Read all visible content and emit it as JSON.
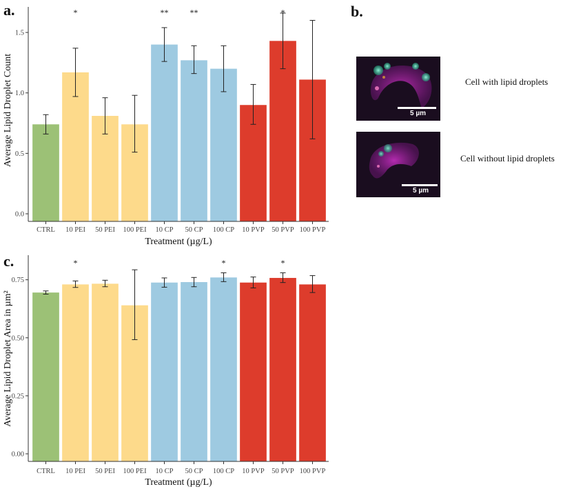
{
  "panel_labels": {
    "a": "a.",
    "b": "b.",
    "c": "c."
  },
  "colors": {
    "green": "#9cc176",
    "yellow": "#fdda8b",
    "blue": "#9ecae1",
    "red": "#dd3c2c"
  },
  "chart_data": [
    {
      "id": "a",
      "type": "bar",
      "title": "",
      "xlabel": "Treatment (µg/L)",
      "ylabel": "Average Lipid Droplet Count",
      "ylim": [
        0,
        1.7
      ],
      "yticks": [
        "0.0",
        "0.5",
        "1.0",
        "1.5"
      ],
      "ytick_values": [
        0,
        0.5,
        1.0,
        1.5
      ],
      "categories": [
        "CTRL",
        "10 PEI",
        "50 PEI",
        "100 PEI",
        "10 CP",
        "50 CP",
        "100 CP",
        "10 PVP",
        "50 PVP",
        "100 PVP"
      ],
      "values": [
        0.74,
        1.17,
        0.81,
        0.74,
        1.4,
        1.27,
        1.2,
        0.9,
        1.43,
        1.11
      ],
      "err_low": [
        0.66,
        0.97,
        0.66,
        0.51,
        1.26,
        1.16,
        1.01,
        0.74,
        1.2,
        0.62
      ],
      "err_high": [
        0.82,
        1.37,
        0.96,
        0.98,
        1.54,
        1.39,
        1.39,
        1.07,
        1.66,
        1.6
      ],
      "significance": [
        "",
        "*",
        "",
        "",
        "**",
        "**",
        "",
        "",
        "*",
        ""
      ],
      "bar_colors": [
        "green",
        "yellow",
        "yellow",
        "yellow",
        "blue",
        "blue",
        "blue",
        "red",
        "red",
        "red"
      ]
    },
    {
      "id": "c",
      "type": "bar",
      "title": "",
      "xlabel": "Treatment (µg/L)",
      "ylabel": "Average Lipid Droplet Area in µm²",
      "ylim": [
        0,
        0.85
      ],
      "yticks": [
        "0.00",
        "0.25",
        "0.50",
        "0.75"
      ],
      "ytick_values": [
        0,
        0.25,
        0.5,
        0.75
      ],
      "categories": [
        "CTRL",
        "10 PEI",
        "50 PEI",
        "100 PEI",
        "10 CP",
        "50 CP",
        "100 CP",
        "10 PVP",
        "50 PVP",
        "100 PVP"
      ],
      "values": [
        0.695,
        0.73,
        0.733,
        0.64,
        0.738,
        0.74,
        0.76,
        0.738,
        0.758,
        0.73
      ],
      "err_low": [
        0.688,
        0.717,
        0.72,
        0.492,
        0.718,
        0.72,
        0.742,
        0.715,
        0.738,
        0.695
      ],
      "err_high": [
        0.702,
        0.745,
        0.748,
        0.793,
        0.758,
        0.76,
        0.78,
        0.762,
        0.78,
        0.768
      ],
      "significance": [
        "",
        "*",
        "",
        "",
        "",
        "",
        "*",
        "",
        "*",
        ""
      ],
      "bar_colors": [
        "green",
        "yellow",
        "yellow",
        "yellow",
        "blue",
        "blue",
        "blue",
        "red",
        "red",
        "red"
      ]
    }
  ],
  "panel_b": {
    "images": [
      {
        "caption": "Cell with lipid droplets",
        "scale_label": "5 µm"
      },
      {
        "caption": "Cell without lipid droplets",
        "scale_label": "5 µm"
      }
    ]
  }
}
